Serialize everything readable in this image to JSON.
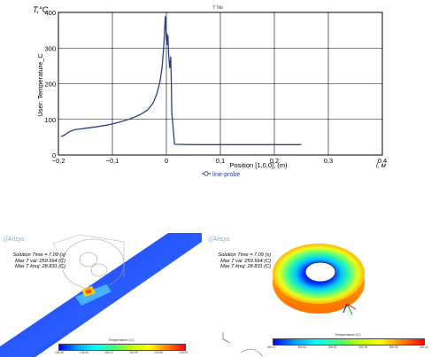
{
  "chart_data": {
    "type": "line",
    "title": "T Val",
    "ylabel": "User: Temperature_C",
    "y_unit": "T,°C",
    "xlabel": "Position [1,0,0], (m)",
    "x_unit": "l, м",
    "xlim": [
      -0.2,
      0.4
    ],
    "ylim": [
      0,
      400
    ],
    "x_ticks": [
      "−0,2",
      "−0,1",
      "0",
      "0,1",
      "0,2",
      "0,3",
      "0,4"
    ],
    "y_ticks": [
      "0",
      "100",
      "200",
      "300",
      "400"
    ],
    "grid": true,
    "legend_position": "bottom-center",
    "series": [
      {
        "name": "line-probe",
        "color": "#2b3f8f",
        "x": [
          -0.195,
          -0.19,
          -0.18,
          -0.17,
          -0.16,
          -0.15,
          -0.13,
          -0.11,
          -0.09,
          -0.07,
          -0.05,
          -0.035,
          -0.025,
          -0.018,
          -0.012,
          -0.008,
          -0.005,
          -0.003,
          -0.002,
          -0.001,
          0.0,
          0.001,
          0.002,
          0.003,
          0.004,
          0.005,
          0.006,
          0.007,
          0.008,
          0.009,
          0.01,
          0.015,
          0.05,
          0.1,
          0.15,
          0.2,
          0.25
        ],
        "y": [
          52,
          55,
          65,
          71,
          73,
          75,
          79,
          84,
          91,
          100,
          112,
          126,
          145,
          170,
          205,
          245,
          300,
          360,
          388,
          355,
          320,
          340,
          310,
          335,
          290,
          265,
          245,
          260,
          275,
          215,
          120,
          30,
          29,
          29,
          29,
          29,
          29
        ]
      }
    ]
  },
  "panel_left": {
    "watermark": "((Ansys",
    "info_lines": [
      "Solution Time = 7.09 (s)",
      "Max T val: 259.564 (C)",
      "Max T knuj: 28.831 (C)"
    ],
    "colorbar_title": "Temperature (C)",
    "colorbar_ticks": [
      "105.08",
      "134.05",
      "163.02",
      "191.99",
      "220.96",
      "249.93"
    ]
  },
  "panel_right": {
    "watermark": "((Ansys",
    "info_lines": [
      "Solution Time = 7.09 (s)",
      "Max T val: 259.564 (C)",
      "Max T knuj: 28.831 (C)"
    ],
    "colorbar_title": "Temperature (C)",
    "colorbar_ticks": [
      "300.27",
      "300.44",
      "300.61",
      "300.78",
      "300.95",
      "301.12"
    ]
  }
}
